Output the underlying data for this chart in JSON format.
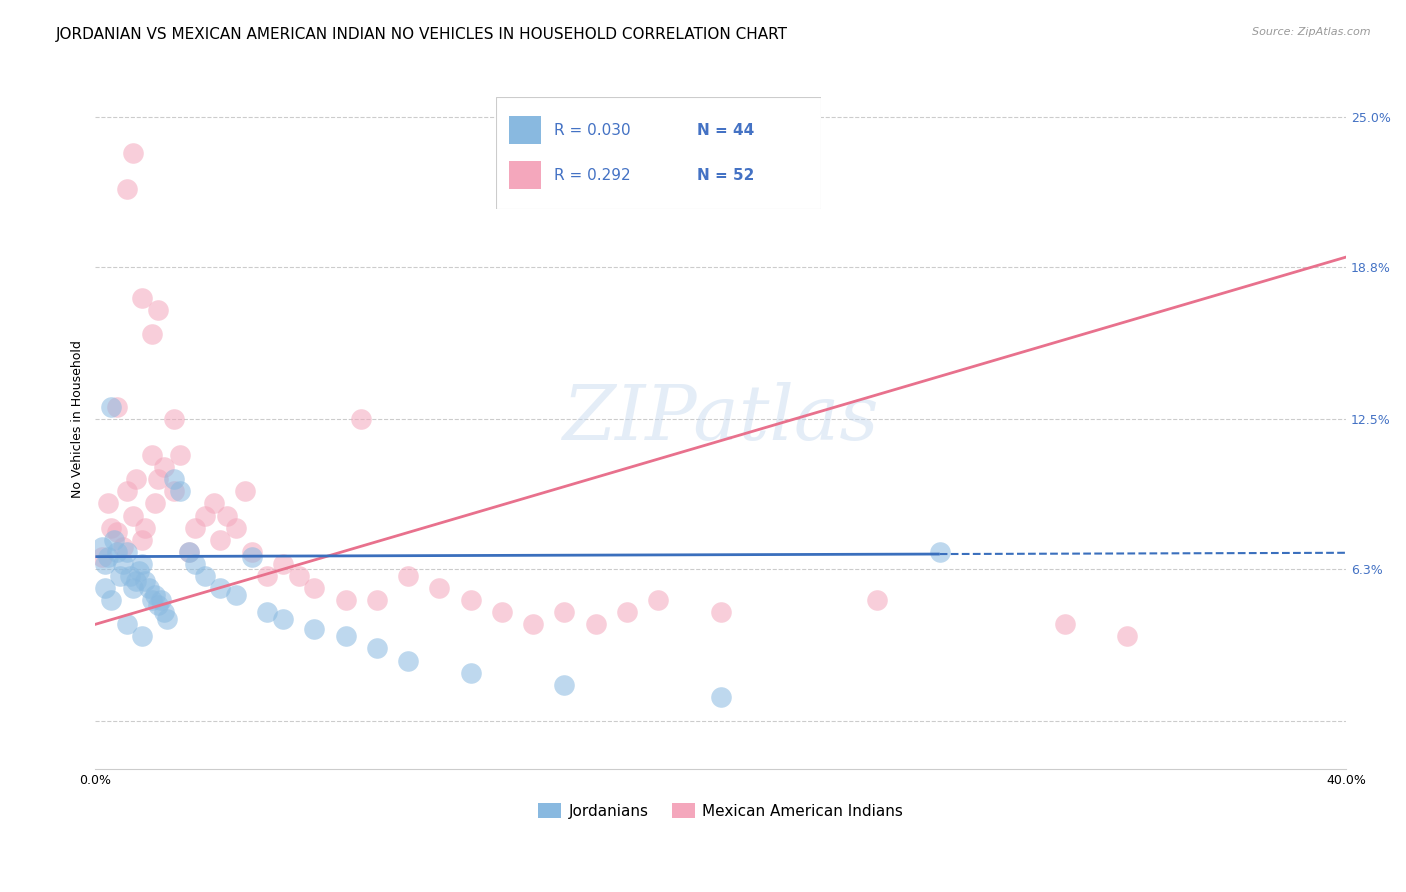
{
  "title": "JORDANIAN VS MEXICAN AMERICAN INDIAN NO VEHICLES IN HOUSEHOLD CORRELATION CHART",
  "source": "Source: ZipAtlas.com",
  "ylabel": "No Vehicles in Household",
  "yticks": [
    0.0,
    0.063,
    0.125,
    0.188,
    0.25
  ],
  "ytick_labels": [
    "",
    "6.3%",
    "12.5%",
    "18.8%",
    "25.0%"
  ],
  "xlim": [
    0.0,
    0.4
  ],
  "ylim": [
    -0.02,
    0.27
  ],
  "watermark": "ZIPatlas",
  "legend_label1": "Jordanians",
  "legend_label2": "Mexican American Indians",
  "blue_scatter_color": "#89b9e0",
  "pink_scatter_color": "#f4a7bc",
  "blue_line_color": "#3a6fbd",
  "pink_line_color": "#e8718d",
  "legend_text_color": "#4472c4",
  "ytick_color": "#4472c4",
  "title_fontsize": 11,
  "axis_label_fontsize": 9,
  "tick_fontsize": 9,
  "jord_x": [
    0.002,
    0.003,
    0.004,
    0.005,
    0.006,
    0.007,
    0.008,
    0.009,
    0.01,
    0.011,
    0.012,
    0.013,
    0.014,
    0.015,
    0.016,
    0.017,
    0.018,
    0.019,
    0.02,
    0.021,
    0.022,
    0.023,
    0.025,
    0.027,
    0.03,
    0.032,
    0.035,
    0.04,
    0.045,
    0.05,
    0.055,
    0.06,
    0.07,
    0.08,
    0.09,
    0.1,
    0.12,
    0.15,
    0.2,
    0.27,
    0.003,
    0.005,
    0.01,
    0.015
  ],
  "jord_y": [
    0.072,
    0.065,
    0.068,
    0.13,
    0.075,
    0.07,
    0.06,
    0.065,
    0.07,
    0.06,
    0.055,
    0.058,
    0.062,
    0.065,
    0.058,
    0.055,
    0.05,
    0.052,
    0.048,
    0.05,
    0.045,
    0.042,
    0.1,
    0.095,
    0.07,
    0.065,
    0.06,
    0.055,
    0.052,
    0.068,
    0.045,
    0.042,
    0.038,
    0.035,
    0.03,
    0.025,
    0.02,
    0.015,
    0.01,
    0.07,
    0.055,
    0.05,
    0.04,
    0.035
  ],
  "mex_x": [
    0.002,
    0.004,
    0.005,
    0.007,
    0.009,
    0.01,
    0.012,
    0.013,
    0.015,
    0.016,
    0.018,
    0.019,
    0.02,
    0.022,
    0.025,
    0.027,
    0.03,
    0.032,
    0.035,
    0.038,
    0.04,
    0.042,
    0.045,
    0.048,
    0.05,
    0.055,
    0.06,
    0.065,
    0.07,
    0.08,
    0.085,
    0.09,
    0.1,
    0.11,
    0.12,
    0.13,
    0.14,
    0.15,
    0.16,
    0.17,
    0.18,
    0.2,
    0.25,
    0.31,
    0.33,
    0.007,
    0.01,
    0.012,
    0.015,
    0.018,
    0.02,
    0.025
  ],
  "mex_y": [
    0.068,
    0.09,
    0.08,
    0.078,
    0.072,
    0.095,
    0.085,
    0.1,
    0.075,
    0.08,
    0.11,
    0.09,
    0.1,
    0.105,
    0.095,
    0.11,
    0.07,
    0.08,
    0.085,
    0.09,
    0.075,
    0.085,
    0.08,
    0.095,
    0.07,
    0.06,
    0.065,
    0.06,
    0.055,
    0.05,
    0.125,
    0.05,
    0.06,
    0.055,
    0.05,
    0.045,
    0.04,
    0.045,
    0.04,
    0.045,
    0.05,
    0.045,
    0.05,
    0.04,
    0.035,
    0.13,
    0.22,
    0.235,
    0.175,
    0.16,
    0.17,
    0.125
  ],
  "jord_line_start_x": 0.0,
  "jord_line_solid_end_x": 0.27,
  "jord_line_dash_end_x": 0.4,
  "jord_line_intercept": 0.068,
  "jord_line_slope": 0.004,
  "mex_line_start_x": 0.0,
  "mex_line_end_x": 0.4,
  "mex_line_intercept": 0.04,
  "mex_line_slope": 0.38
}
